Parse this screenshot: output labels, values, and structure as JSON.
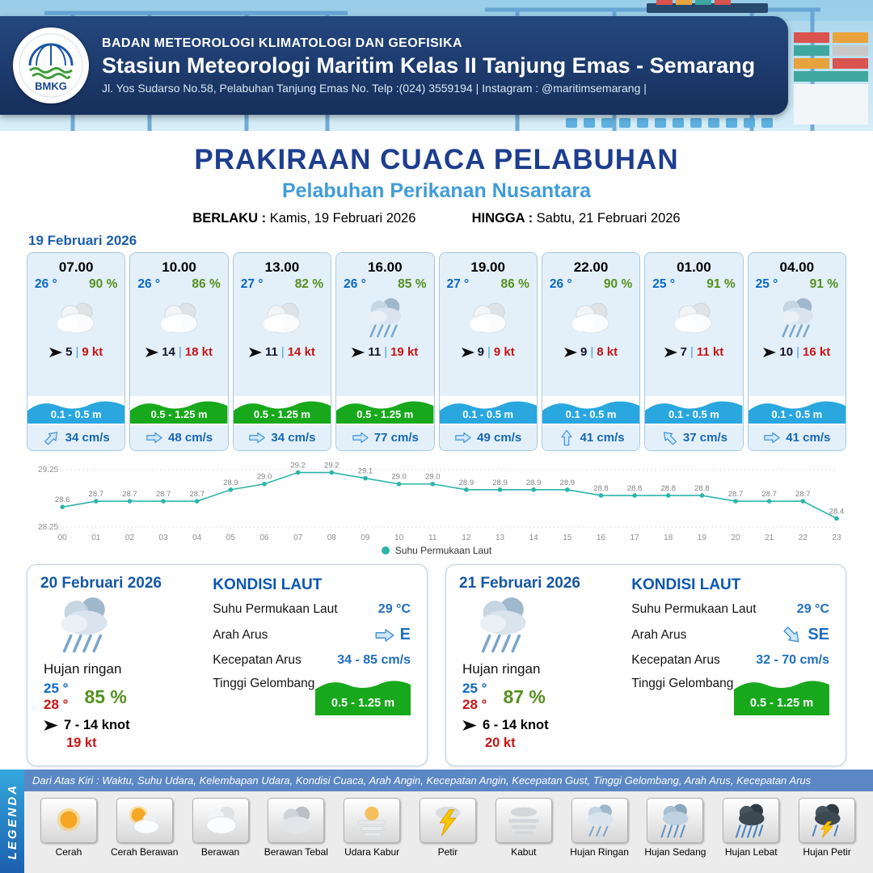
{
  "header": {
    "agency": "BADAN METEOROLOGI KLIMATOLOGI DAN GEOFISIKA",
    "station": "Stasiun Meteorologi Maritim Kelas II Tanjung Emas - Semarang",
    "address": "Jl. Yos Sudarso No.58, Pelabuhan Tanjung Emas No. Telp :(024) 3559194 | Instagram : @maritimsemarang |",
    "logo_text": "BMKG"
  },
  "title": {
    "main": "PRAKIRAAN CUACA PELABUHAN",
    "subtitle": "Pelabuhan Perikanan Nusantara",
    "valid_label": "BERLAKU :",
    "valid_value": "Kamis, 19 Februari 2026",
    "until_label": "HINGGA :",
    "until_value": "Sabtu, 21 Februari 2026"
  },
  "forecast": {
    "date": "19 Februari 2026",
    "wind_sep": "|",
    "cards": [
      {
        "time": "07.00",
        "temp": "26 °",
        "humidity": "90 %",
        "icon": "berawan",
        "wind_avg": "5",
        "wind_gust": "9 kt",
        "wave": "0.1 - 0.5 m",
        "wave_style": "blue",
        "current": "34 cm/s",
        "current_dir": "NE"
      },
      {
        "time": "10.00",
        "temp": "26 °",
        "humidity": "86 %",
        "icon": "berawan",
        "wind_avg": "14",
        "wind_gust": "18 kt",
        "wave": "0.5 - 1.25 m",
        "wave_style": "green",
        "current": "48 cm/s",
        "current_dir": "E"
      },
      {
        "time": "13.00",
        "temp": "27 °",
        "humidity": "82 %",
        "icon": "berawan",
        "wind_avg": "11",
        "wind_gust": "14 kt",
        "wave": "0.5 - 1.25 m",
        "wave_style": "green",
        "current": "34 cm/s",
        "current_dir": "E"
      },
      {
        "time": "16.00",
        "temp": "26 °",
        "humidity": "85 %",
        "icon": "hujan",
        "wind_avg": "11",
        "wind_gust": "19 kt",
        "wave": "0.5 - 1.25 m",
        "wave_style": "green",
        "current": "77 cm/s",
        "current_dir": "E"
      },
      {
        "time": "19.00",
        "temp": "27 °",
        "humidity": "86 %",
        "icon": "berawan",
        "wind_avg": "9",
        "wind_gust": "9 kt",
        "wave": "0.1 - 0.5 m",
        "wave_style": "blue",
        "current": "49 cm/s",
        "current_dir": "E"
      },
      {
        "time": "22.00",
        "temp": "26 °",
        "humidity": "90 %",
        "icon": "berawan",
        "wind_avg": "9",
        "wind_gust": "8 kt",
        "wave": "0.1 - 0.5 m",
        "wave_style": "blue",
        "current": "41 cm/s",
        "current_dir": "N"
      },
      {
        "time": "01.00",
        "temp": "25 °",
        "humidity": "91 %",
        "icon": "berawan",
        "wind_avg": "7",
        "wind_gust": "11 kt",
        "wave": "0.1 - 0.5 m",
        "wave_style": "blue",
        "current": "37 cm/s",
        "current_dir": "NW"
      },
      {
        "time": "04.00",
        "temp": "25 °",
        "humidity": "91 %",
        "icon": "hujan",
        "wind_avg": "10",
        "wind_gust": "16 kt",
        "wave": "0.1 - 0.5 m",
        "wave_style": "blue",
        "current": "41 cm/s",
        "current_dir": "E"
      }
    ]
  },
  "chart_data": {
    "type": "line",
    "legend": "Suhu Permukaan Laut",
    "x": [
      "00",
      "01",
      "02",
      "03",
      "04",
      "05",
      "06",
      "07",
      "08",
      "09",
      "10",
      "11",
      "12",
      "13",
      "14",
      "15",
      "16",
      "17",
      "18",
      "19",
      "20",
      "21",
      "22",
      "23"
    ],
    "values": [
      28.6,
      28.7,
      28.7,
      28.7,
      28.7,
      28.9,
      29.0,
      29.2,
      29.2,
      29.1,
      29.0,
      29.0,
      28.9,
      28.9,
      28.9,
      28.9,
      28.8,
      28.8,
      28.8,
      28.8,
      28.7,
      28.7,
      28.7,
      28.4
    ],
    "ylim": [
      28.25,
      29.25
    ],
    "yticks": [
      28.25,
      29.25
    ],
    "line_color": "#2cb5a8",
    "xlabel": "",
    "ylabel": ""
  },
  "daily": [
    {
      "date": "20 Februari 2026",
      "icon": "hujan",
      "condition": "Hujan ringan",
      "temp_min": "25 °",
      "temp_max": "28 °",
      "humidity": "85 %",
      "wind": "7 - 14 knot",
      "gust": "19 kt",
      "sea": {
        "heading": "KONDISI LAUT",
        "sst_label": "Suhu Permukaan Laut",
        "sst": "29 °C",
        "dir_label": "Arah Arus",
        "dir": "E",
        "dir_compass": "E",
        "speed_label": "Kecepatan Arus",
        "speed": "34 - 85 cm/s",
        "wave_label": "Tinggi Gelombang",
        "wave": "0.5 - 1.25 m"
      }
    },
    {
      "date": "21 Februari 2026",
      "icon": "hujan",
      "condition": "Hujan ringan",
      "temp_min": "25 °",
      "temp_max": "28 °",
      "humidity": "87 %",
      "wind": "6 - 14 knot",
      "gust": "20 kt",
      "sea": {
        "heading": "KONDISI LAUT",
        "sst_label": "Suhu Permukaan Laut",
        "sst": "29 °C",
        "dir_label": "Arah Arus",
        "dir": "SE",
        "dir_compass": "SE",
        "speed_label": "Kecepatan Arus",
        "speed": "32 - 70 cm/s",
        "wave_label": "Tinggi Gelombang",
        "wave": "0.5 - 1.25 m"
      }
    }
  ],
  "legend": {
    "title": "LEGENDA",
    "description": "Dari Atas Kiri : Waktu, Suhu Udara, Kelembapan Udara, Kondisi Cuaca, Arah Angin, Kecepatan Angin, Kecepatan Gust, Tinggi Gelombang, Arah Arus, Kecepatan Arus",
    "items": [
      {
        "icon": "sun-icon",
        "label": "Cerah"
      },
      {
        "icon": "sun-cloud-icon",
        "label": "Cerah Berawan"
      },
      {
        "icon": "cloud-icon",
        "label": "Berawan"
      },
      {
        "icon": "thick-cloud-icon",
        "label": "Berawan Tebal"
      },
      {
        "icon": "haze-icon",
        "label": "Udara Kabur"
      },
      {
        "icon": "lightning-icon",
        "label": "Petir"
      },
      {
        "icon": "fog-icon",
        "label": "Kabut"
      },
      {
        "icon": "light-rain-icon",
        "label": "Hujan Ringan"
      },
      {
        "icon": "moderate-rain-icon",
        "label": "Hujan Sedang"
      },
      {
        "icon": "heavy-rain-icon",
        "label": "Hujan Lebat"
      },
      {
        "icon": "thunderstorm-icon",
        "label": "Hujan Petir"
      }
    ]
  },
  "colors": {
    "navy_band": "#1c3a70",
    "title_blue": "#1d3e8f",
    "subtitle_blue": "#3f9cd9",
    "temp_blue": "#0a68c8",
    "humidity_green": "#55901e",
    "gust_red": "#c81414",
    "wave_green": "#18a81c",
    "wave_blue": "#2aa7df",
    "sst_line_teal": "#2cb5a8"
  }
}
